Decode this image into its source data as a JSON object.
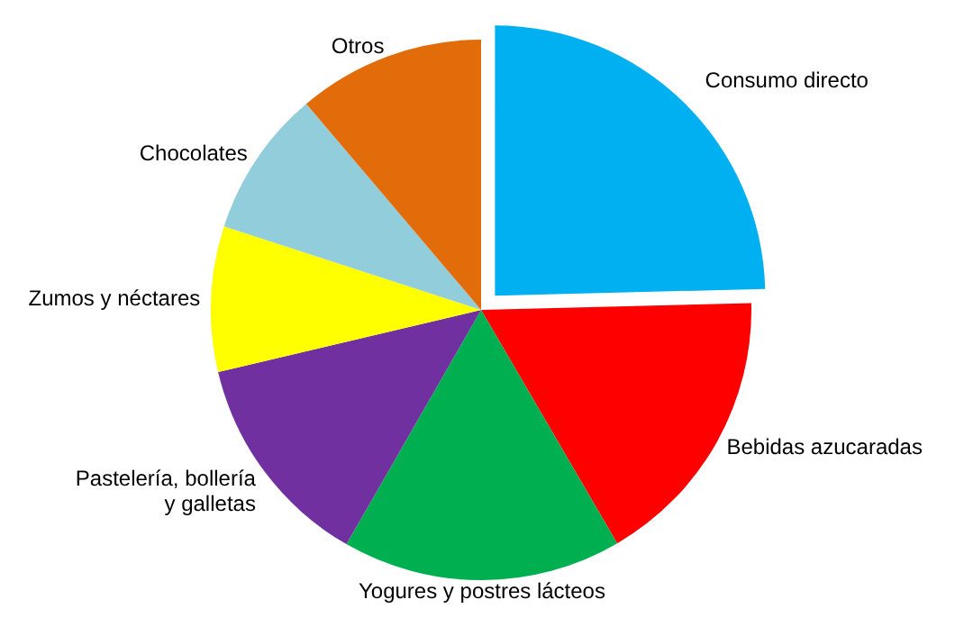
{
  "chart_data": {
    "type": "pie",
    "categories": [
      "Consumo directo",
      "Bebidas azucaradas",
      "Yogures y postres lácteos",
      "Pastelería, bollería\ny galletas",
      "Zumos y néctares",
      "Chocolates",
      "Otros"
    ],
    "values": [
      24.6,
      17,
      16.7,
      13,
      8.7,
      8.8,
      11.2
    ],
    "colors": [
      "#00b0f0",
      "#ff0000",
      "#00b050",
      "#7030a0",
      "#ffff00",
      "#92cddc",
      "#e36c0a"
    ]
  }
}
